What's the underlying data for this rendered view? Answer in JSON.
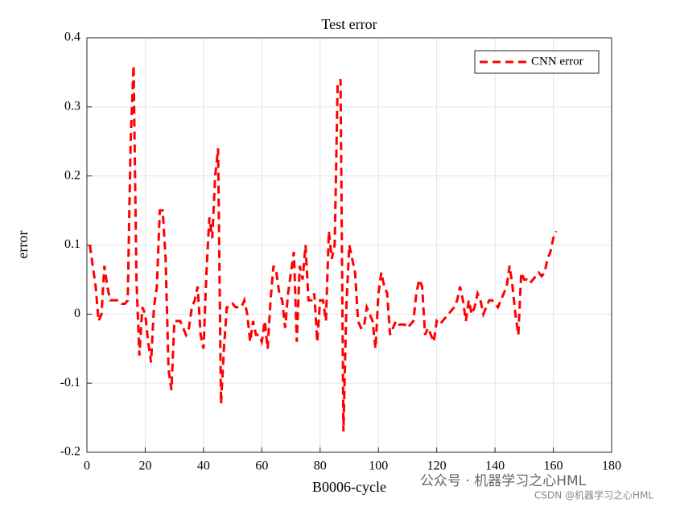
{
  "chart_data": {
    "type": "line",
    "title": "Test error",
    "xlabel": "B0006-cycle",
    "ylabel": "error",
    "x": [
      1,
      2,
      3,
      4,
      5,
      6,
      7,
      8,
      9,
      10,
      11,
      12,
      13,
      14,
      15,
      16,
      17,
      18,
      19,
      20,
      21,
      22,
      23,
      24,
      25,
      26,
      27,
      28,
      29,
      30,
      31,
      32,
      33,
      34,
      35,
      36,
      37,
      38,
      39,
      40,
      41,
      42,
      43,
      44,
      45,
      46,
      47,
      48,
      49,
      50,
      51,
      52,
      53,
      54,
      55,
      56,
      57,
      58,
      59,
      60,
      61,
      62,
      63,
      64,
      65,
      66,
      67,
      68,
      69,
      70,
      71,
      72,
      73,
      74,
      75,
      76,
      77,
      78,
      79,
      80,
      81,
      82,
      83,
      84,
      85,
      86,
      87,
      88,
      89,
      90,
      91,
      92,
      93,
      94,
      95,
      96,
      97,
      98,
      99,
      100,
      101,
      102,
      103,
      104,
      105,
      106,
      107,
      108,
      109,
      110,
      111,
      112,
      113,
      114,
      115,
      116,
      117,
      118,
      119,
      120,
      121,
      122,
      123,
      124,
      125,
      126,
      127,
      128,
      129,
      130,
      131,
      132,
      133,
      134,
      135,
      136,
      137,
      138,
      139,
      140,
      141,
      142,
      143,
      144,
      145,
      146,
      147,
      148,
      149,
      150,
      151,
      152,
      153,
      154,
      155,
      156,
      157,
      158,
      159,
      160,
      161
    ],
    "series": [
      {
        "name": "CNN error",
        "color": "#ff0000",
        "dash": true,
        "values": [
          0.1,
          0.07,
          0.04,
          -0.01,
          0.0,
          0.07,
          0.04,
          0.02,
          0.02,
          0.02,
          0.02,
          0.015,
          0.015,
          0.02,
          0.25,
          0.36,
          0.05,
          -0.06,
          0.01,
          0.0,
          -0.04,
          -0.07,
          0.01,
          0.04,
          0.15,
          0.15,
          0.08,
          -0.08,
          -0.11,
          -0.01,
          -0.01,
          -0.01,
          -0.02,
          -0.03,
          -0.02,
          0.01,
          0.02,
          0.04,
          -0.03,
          -0.05,
          0.06,
          0.14,
          0.11,
          0.2,
          0.24,
          -0.13,
          -0.05,
          0.01,
          0.01,
          0.015,
          0.01,
          0.01,
          0.01,
          0.02,
          0.0,
          -0.04,
          -0.01,
          -0.03,
          -0.03,
          -0.04,
          -0.01,
          -0.05,
          0.02,
          0.07,
          0.06,
          0.03,
          0.02,
          -0.02,
          0.03,
          0.06,
          0.09,
          -0.04,
          0.07,
          0.05,
          0.1,
          0.02,
          0.02,
          0.03,
          -0.04,
          0.02,
          0.02,
          -0.01,
          0.12,
          0.08,
          0.1,
          0.33,
          0.34,
          -0.17,
          0.01,
          0.1,
          0.08,
          0.06,
          -0.01,
          -0.02,
          -0.02,
          0.01,
          0.0,
          -0.01,
          -0.05,
          0.03,
          0.06,
          0.04,
          0.03,
          -0.03,
          -0.02,
          -0.01,
          -0.015,
          -0.015,
          -0.015,
          -0.02,
          -0.015,
          -0.01,
          0.03,
          0.05,
          0.04,
          -0.03,
          -0.02,
          -0.03,
          -0.04,
          -0.01,
          -0.015,
          -0.01,
          -0.005,
          0.0,
          0.005,
          0.01,
          0.02,
          0.04,
          0.02,
          -0.01,
          0.02,
          0.0,
          0.01,
          0.03,
          0.02,
          0.0,
          0.01,
          0.02,
          0.02,
          0.015,
          0.01,
          0.02,
          0.03,
          0.04,
          0.07,
          0.04,
          0.0,
          -0.03,
          0.06,
          0.05,
          0.05,
          0.045,
          0.05,
          0.055,
          0.06,
          0.055,
          0.06,
          0.08,
          0.09,
          0.11,
          0.12
        ]
      }
    ],
    "xlim": [
      0,
      180
    ],
    "xticks": [
      0,
      20,
      40,
      60,
      80,
      100,
      120,
      140,
      160,
      180
    ],
    "ylim": [
      -0.2,
      0.4
    ],
    "yticks": [
      -0.2,
      -0.1,
      0,
      0.1,
      0.2,
      0.3,
      0.4
    ],
    "grid": true,
    "legend": "upper right",
    "watermarks": [
      "公众号 · 机器学习之心HML",
      "CSDN @机器学习之心HML"
    ]
  }
}
